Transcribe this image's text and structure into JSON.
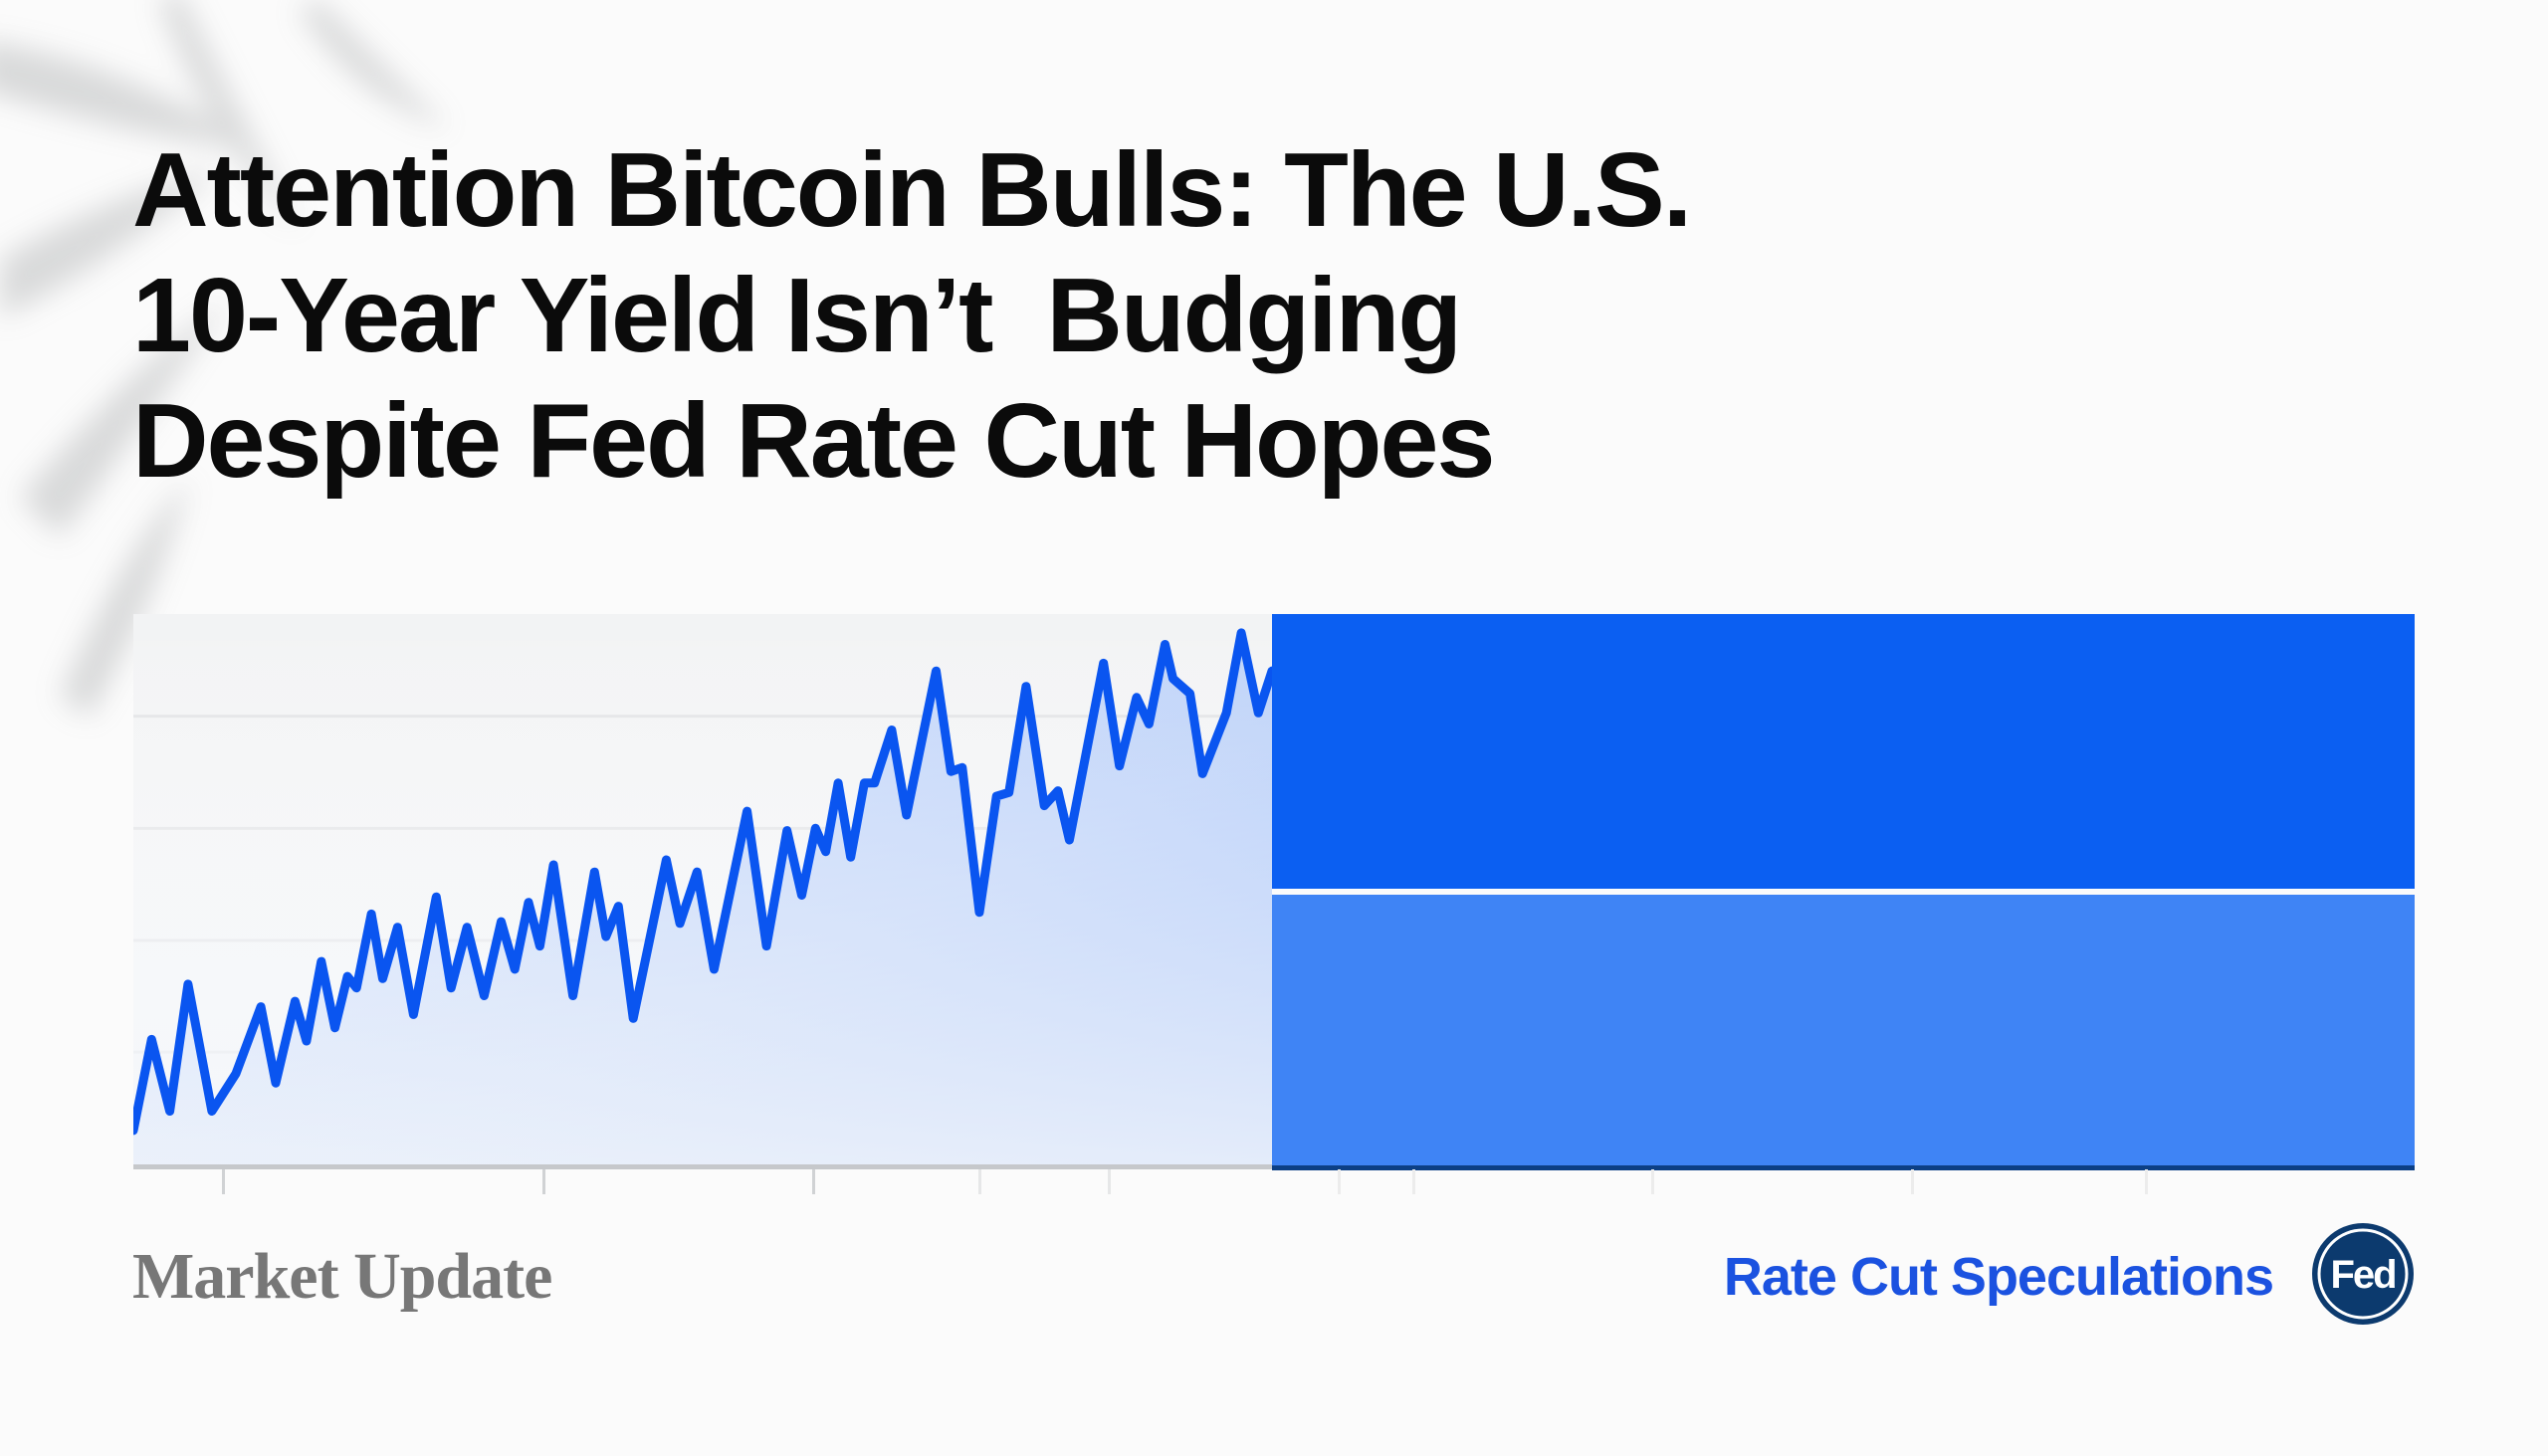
{
  "headline": {
    "lines": [
      "Attention Bitcoin Bulls: The U.S.",
      "10-Year Yield Isn’t  Budging",
      "Despite Fed Rate Cut Hopes"
    ]
  },
  "footer": {
    "left_label": "Market Update",
    "right_label": "Rate Cut Speculations",
    "logo_text": "Fed"
  },
  "colors": {
    "line": "#0a55f0",
    "panel_top": "#0b5ff2",
    "panel_bottom": "#3f84f5",
    "headline": "#0b0b0b",
    "right_label": "#1b52e0",
    "logo": "#0c3a6e"
  },
  "chart_data": {
    "type": "area",
    "grid": true,
    "x": [
      0,
      1.6,
      3.2,
      4.8,
      6.9,
      9.0,
      11.2,
      12.5,
      14.2,
      15.2,
      16.5,
      17.7,
      18.8,
      19.6,
      20.9,
      21.9,
      23.2,
      24.6,
      26.6,
      27.9,
      29.3,
      30.8,
      32.3,
      33.5,
      34.7,
      35.7,
      36.9,
      38.6,
      40.5,
      41.5,
      42.6,
      43.9,
      46.8,
      48.0,
      49.5,
      51.0,
      53.9,
      55.6,
      57.4,
      58.7,
      59.9,
      60.8,
      61.9,
      63.0,
      64.2,
      65.1,
      66.6,
      67.9,
      70.5,
      71.8,
      72.8,
      74.3,
      75.8,
      76.9,
      78.4,
      80.0,
      81.2,
      82.2,
      85.2,
      86.6,
      88.1,
      89.2,
      90.6,
      91.3,
      92.8,
      93.9,
      96.0,
      97.3,
      98.8,
      100
    ],
    "values": [
      6.5,
      23.0,
      10.0,
      33.0,
      10.0,
      16.8,
      28.9,
      15.1,
      29.9,
      22.7,
      37.1,
      25.1,
      34.4,
      32.3,
      45.7,
      34.0,
      43.3,
      27.5,
      48.8,
      32.3,
      43.3,
      30.9,
      44.3,
      35.7,
      47.8,
      39.9,
      54.6,
      30.9,
      53.3,
      41.6,
      47.1,
      26.8,
      55.5,
      44.0,
      53.3,
      35.7,
      64.3,
      39.9,
      60.8,
      49.1,
      61.2,
      57.0,
      69.4,
      56.0,
      69.4,
      69.4,
      79.0,
      63.6,
      89.7,
      71.5,
      72.2,
      46.0,
      67.0,
      67.7,
      86.9,
      65.3,
      68.0,
      59.1,
      91.1,
      72.5,
      84.9,
      80.1,
      94.5,
      88.3,
      85.6,
      71.1,
      82.1,
      96.6,
      82.1,
      89.7
    ],
    "ylim": [
      0,
      100
    ],
    "xlim": [
      0,
      100
    ]
  }
}
